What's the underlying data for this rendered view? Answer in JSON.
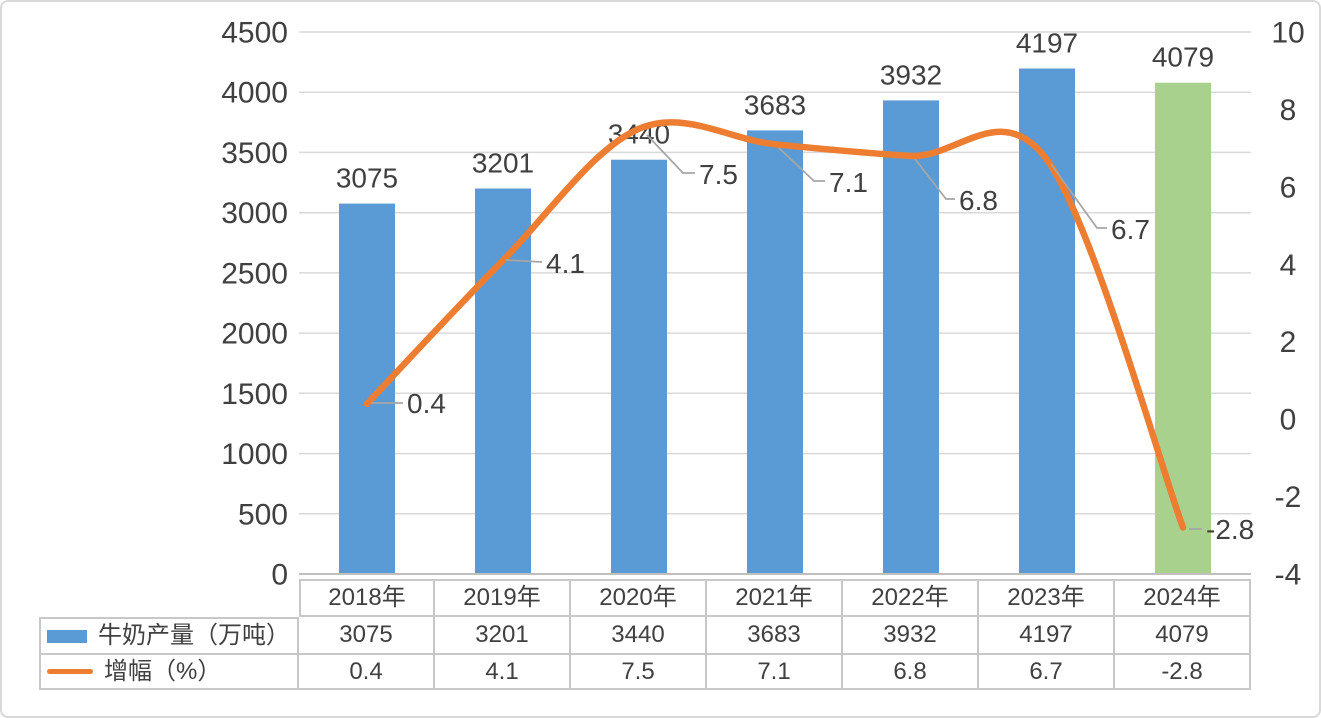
{
  "chart_data": {
    "type": "bar+line-combo",
    "categories": [
      "2018年",
      "2019年",
      "2020年",
      "2021年",
      "2022年",
      "2023年",
      "2024年"
    ],
    "series": [
      {
        "name": "牛奶产量（万吨）",
        "type": "bar",
        "axis": "left",
        "values": [
          3075,
          3201,
          3440,
          3683,
          3932,
          4197,
          4079
        ],
        "colors": [
          "#5B9BD5",
          "#5B9BD5",
          "#5B9BD5",
          "#5B9BD5",
          "#5B9BD5",
          "#5B9BD5",
          "#A9D18E"
        ]
      },
      {
        "name": "增幅（%）",
        "type": "line",
        "axis": "right",
        "values": [
          0.4,
          4.1,
          7.5,
          7.1,
          6.8,
          6.7,
          -2.8
        ],
        "color": "#ED7D31",
        "smooth": true
      }
    ],
    "left_axis": {
      "min": 0,
      "max": 4500,
      "step": 500,
      "ticks": [
        0,
        500,
        1000,
        1500,
        2000,
        2500,
        3000,
        3500,
        4000,
        4500
      ]
    },
    "right_axis": {
      "min": -4,
      "max": 10,
      "step": 2,
      "ticks": [
        -4,
        -2,
        0,
        2,
        4,
        6,
        8,
        10
      ]
    },
    "grid": true,
    "legend_position": "table-left",
    "title": "",
    "colors": {
      "bar_default": "#5B9BD5",
      "bar_highlight_2024": "#A9D18E",
      "line": "#ED7D31",
      "gridline": "#D9D9D9",
      "leader": "#A6A6A6",
      "text": "#404040"
    }
  }
}
